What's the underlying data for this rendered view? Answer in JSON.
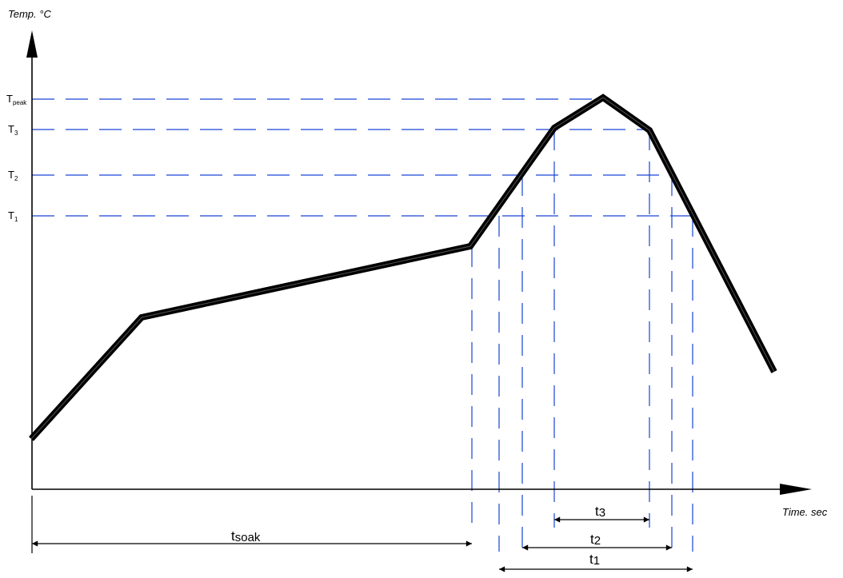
{
  "axes": {
    "y_label": "Temp. °C",
    "x_label": "Time. sec"
  },
  "temp_levels": [
    {
      "key": "tpeak",
      "base": "T",
      "sub": "peak"
    },
    {
      "key": "t3",
      "base": "T",
      "sub": "3"
    },
    {
      "key": "t2",
      "base": "T",
      "sub": "2"
    },
    {
      "key": "t1",
      "base": "T",
      "sub": "1"
    }
  ],
  "durations": [
    {
      "key": "soak",
      "base": "t",
      "sub": "soak"
    },
    {
      "key": "t3",
      "base": "t",
      "sub": "3"
    },
    {
      "key": "t2",
      "base": "t",
      "sub": "2"
    },
    {
      "key": "t1",
      "base": "t",
      "sub": "1"
    }
  ],
  "colors": {
    "guide": "#1a44d6",
    "profile": "#000000",
    "axis": "#000000"
  }
}
